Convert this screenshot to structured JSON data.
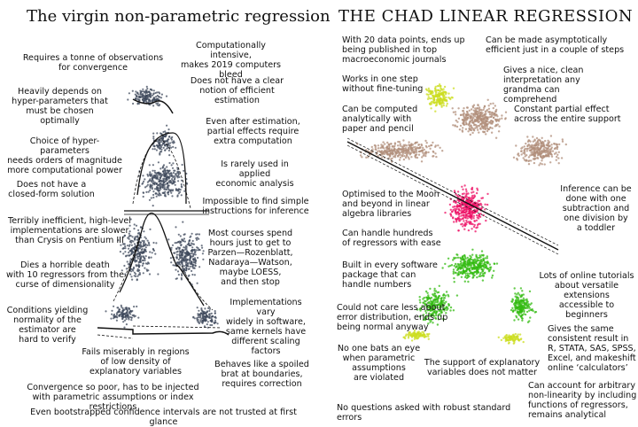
{
  "left": {
    "title": "The virgin non-parametric regression",
    "notes": [
      "Requires a tonne of observations\nfor convergence",
      "Heavily depends on\nhyper-parameters that\nmust be chosen optimally",
      "Choice of hyper-parameters\nneeds orders of magnitude\nmore computational power",
      "Does not have a\nclosed-form solution",
      "Terribly inefficient, high-level\nimplementations are slower\nthan Crysis on Pentium III",
      "Dies a horrible death\nwith 10 regressors from the\ncurse of dimensionality",
      "Conditions yielding\nnormality of the\nestimator are\nhard to verify",
      "Fails miserably in regions\nof low density of\nexplanatory variables",
      "Convergence so poor, has to be injected\nwith parametric assumptions or index restrictions",
      "Even bootstrapped confidence intervals are not trusted at first glance",
      "Computationally intensive,\nmakes 2019 computers bleed",
      "Does not have a clear\nnotion of efficient estimation",
      "Even after estimation,\npartial effects require\nextra computation",
      "Is rarely used in applied\neconomic analysis",
      "Impossible to find simple\ninstructions for inference",
      "Most courses spend\nhours just to get to\nParzen—Rozenblatt,\nNadaraya—Watson,\nmaybe LOESS,\nand then stop",
      "Implementations vary\nwidely in software,\nsame kernels have\ndifferent scaling\nfactors",
      "Behaves like a spoiled\nbrat at boundaries,\nrequires correction"
    ]
  },
  "right": {
    "title": "THE CHAD LINEAR REGRESSION",
    "notes": [
      "With 20 data points, ends up\nbeing published in top\nmacroeconomic journals",
      "Works in one step\nwithout fine-tuning",
      "Can be computed\nanalytically with\npaper and pencil",
      "Optimised to the Moon\nand beyond in linear\nalgebra libraries",
      "Can handle hundreds\nof regressors with ease",
      "Built in every software\npackage that can\nhandle numbers",
      "Could not care less about\nerror distribution, ends up\nbeing normal anyway",
      "No one bats an eye\nwhen parametric\nassumptions\nare violated",
      "The support of explanatory\nvariables does not matter",
      "No questions asked with robust standard errors",
      "Can be made asymptotically\nefficient just in a couple of steps",
      "Gives a nice, clean\ninterpretation any\ngrandma can comprehend",
      "Constant partial effect\nacross the entire support",
      "Inference can be\ndone with one\nsubtraction and\none division by\na toddler",
      "Lots of online tutorials\nabout versatile\nextensions\naccessible to\nbeginners",
      "Gives the same\nconsistent result in\nR, STATA, SAS, SPSS,\nExcel, and makeshift\nonline ‘calculators’",
      "Can account for arbitrary\nnon-linearity by including\nfunctions of regressors,\nremains analytical"
    ]
  },
  "colors": {
    "virgin_points": "#3f4a5c",
    "chad_skin": "#b08d7a",
    "chad_head": "#ccdd22",
    "chad_shirt": "#ee1166",
    "chad_pants": "#33bb11"
  }
}
